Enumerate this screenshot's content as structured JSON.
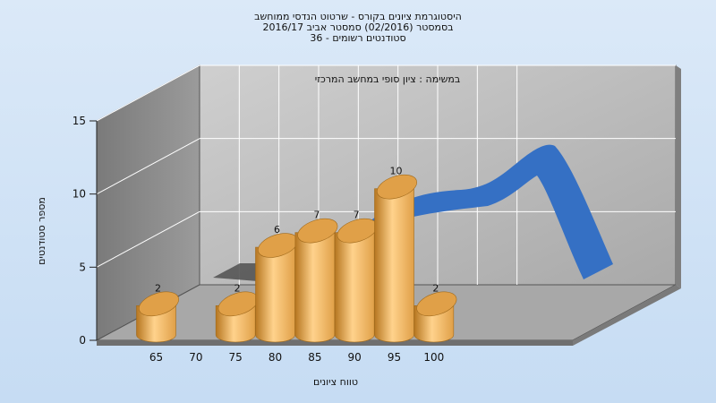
{
  "chart_data": {
    "type": "bar",
    "title_lines": [
      "היסטוגרמת ציונים בקורס - שרטוט הנדסי ממוחשב",
      "בסמסטר  (02/2016)  סמסטר אביב 2016/17",
      "סטודנטים רשומים - 36"
    ],
    "annotation": "במשימה : ציון סופי במחשב המרכזי",
    "xlabel": "טווח ציונים",
    "ylabel": "מספר סטודנטים",
    "y_ticks": [
      "0",
      "5",
      "10",
      "15"
    ],
    "ylim": [
      0,
      15
    ],
    "x_tick_labels": [
      "65",
      "70",
      "75",
      "80",
      "85",
      "90",
      "95",
      "100"
    ],
    "bars": [
      {
        "x": 65,
        "value": 2,
        "label": "2"
      },
      {
        "x": 75,
        "value": 2,
        "label": "2"
      },
      {
        "x": 80,
        "value": 6,
        "label": "6"
      },
      {
        "x": 85,
        "value": 7,
        "label": "7"
      },
      {
        "x": 90,
        "value": 7,
        "label": "7"
      },
      {
        "x": 95,
        "value": 10,
        "label": "10"
      },
      {
        "x": 100,
        "value": 2,
        "label": "2"
      }
    ],
    "trend_curve": {
      "color": "#3570c4",
      "shadow_color": "#555555"
    },
    "colors": {
      "bar": "#e0a048",
      "bar_light": "#ffd28c",
      "bar_dark": "#b67620",
      "back_wall": "#bdbdbd",
      "left_wall": "#8c8c8c",
      "floor": "#a8a8a8",
      "gridline": "#ffffff"
    }
  }
}
